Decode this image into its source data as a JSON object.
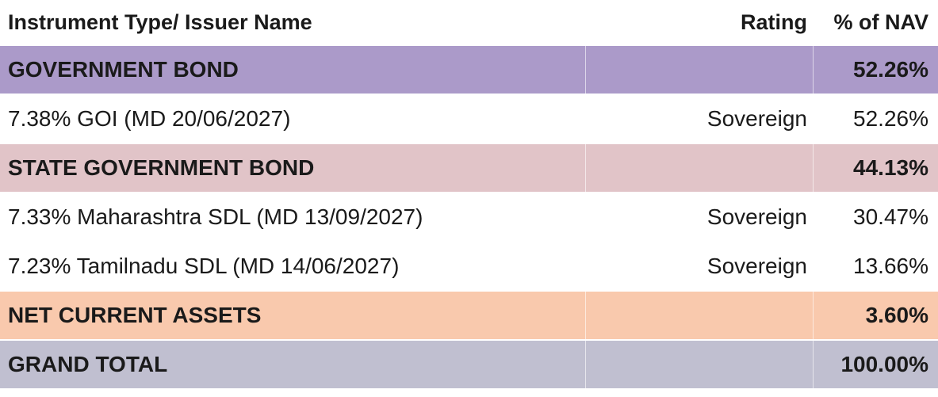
{
  "header": {
    "name": "Instrument Type/ Issuer Name",
    "rating": "Rating",
    "nav": "% of NAV"
  },
  "rows": [
    {
      "kind": "category",
      "name": "GOVERNMENT BOND",
      "rating": "",
      "nav": "52.26%",
      "color": "#ab9ac9"
    },
    {
      "kind": "item",
      "name": "7.38% GOI (MD 20/06/2027)",
      "rating": "Sovereign",
      "nav": "52.26%"
    },
    {
      "kind": "category",
      "name": "STATE GOVERNMENT BOND",
      "rating": "",
      "nav": "44.13%",
      "color": "#e1c4c8"
    },
    {
      "kind": "item",
      "name": "7.33% Maharashtra SDL (MD 13/09/2027)",
      "rating": "Sovereign",
      "nav": "30.47%"
    },
    {
      "kind": "item",
      "name": "7.23% Tamilnadu SDL (MD 14/06/2027)",
      "rating": "Sovereign",
      "nav": "13.66%"
    },
    {
      "kind": "category",
      "name": "NET CURRENT ASSETS",
      "rating": "",
      "nav": "3.60%",
      "color": "#f9c9ad"
    },
    {
      "kind": "category",
      "name": "GRAND TOTAL",
      "rating": "",
      "nav": "100.00%",
      "color": "#c0bfd0"
    }
  ]
}
